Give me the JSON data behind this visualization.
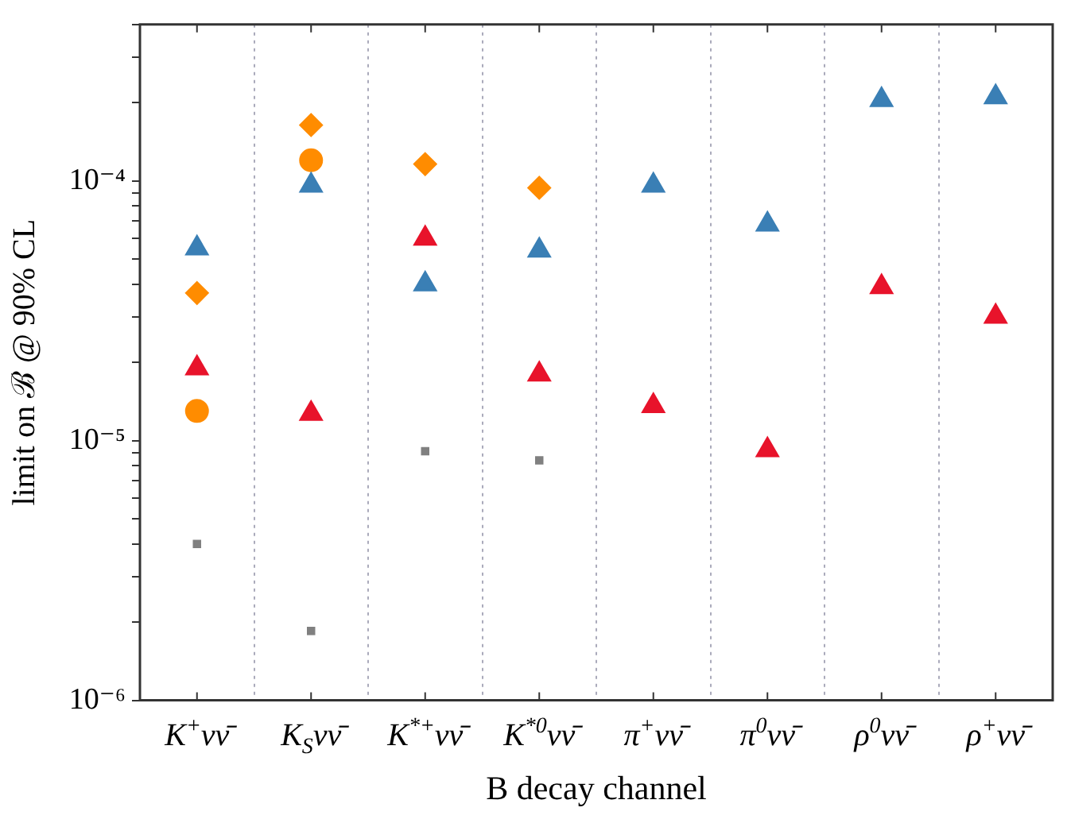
{
  "chart_data": {
    "type": "scatter",
    "xlabel": "B decay channel",
    "ylabel": "limit on ℬ @ 90% CL",
    "categories": [
      "K$^{+}$νν̄",
      "K$_{S}$νν̄",
      "K$^{*+}$νν̄",
      "K$^{*0}$νν̄",
      "π$^{+}$νν̄",
      "π$^{0}$νν̄",
      "ρ$^{0}$νν̄",
      "ρ$^{+}$νν̄"
    ],
    "series": [
      {
        "color": "#3a7fb5",
        "marker": "triangle",
        "values": [
          5.5e-05,
          9.6e-05,
          4e-05,
          5.4e-05,
          9.6e-05,
          6.8e-05,
          0.000205,
          0.00021
        ]
      },
      {
        "color": "#e8132b",
        "marker": "triangle",
        "values": [
          1.9e-05,
          1.27e-05,
          6e-05,
          1.8e-05,
          1.36e-05,
          9.2e-06,
          3.9e-05,
          3e-05
        ]
      },
      {
        "color": "#ff8c00",
        "marker": "diamond",
        "values": [
          3.7e-05,
          0.000164,
          0.000116,
          9.4e-05,
          null,
          null,
          null,
          null
        ]
      },
      {
        "color": "#ff8c00",
        "marker": "circle",
        "values": [
          1.3e-05,
          0.00012,
          null,
          null,
          null,
          null,
          null,
          null
        ]
      },
      {
        "color": "#808080",
        "marker": "square",
        "values": [
          4e-06,
          1.85e-06,
          9.1e-06,
          8.4e-06,
          null,
          null,
          null,
          null
        ]
      }
    ],
    "log": "y",
    "ylim": [
      1e-06,
      0.0004
    ],
    "yticks": [
      {
        "value": 1e-06,
        "label": "10⁻⁶"
      },
      {
        "value": 2e-06,
        "label": null
      },
      {
        "value": 3e-06,
        "label": null
      },
      {
        "value": 4e-06,
        "label": null
      },
      {
        "value": 5e-06,
        "label": null
      },
      {
        "value": 6e-06,
        "label": null
      },
      {
        "value": 7e-06,
        "label": null
      },
      {
        "value": 8e-06,
        "label": null
      },
      {
        "value": 9e-06,
        "label": null
      },
      {
        "value": 1e-05,
        "label": "10⁻⁵"
      },
      {
        "value": 2e-05,
        "label": null
      },
      {
        "value": 3e-05,
        "label": null
      },
      {
        "value": 4e-05,
        "label": null
      },
      {
        "value": 5e-05,
        "label": null
      },
      {
        "value": 6e-05,
        "label": null
      },
      {
        "value": 7e-05,
        "label": null
      },
      {
        "value": 8e-05,
        "label": null
      },
      {
        "value": 9e-05,
        "label": null
      },
      {
        "value": 0.0001,
        "label": "10⁻⁴"
      },
      {
        "value": 0.0002,
        "label": null
      },
      {
        "value": 0.0003,
        "label": null
      },
      {
        "value": 0.0004,
        "label": null
      }
    ],
    "grid": "x",
    "legend": false
  }
}
